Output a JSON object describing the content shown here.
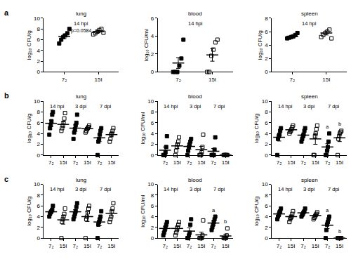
{
  "chart_data": [
    {
      "type": "scatter",
      "panel_label": "a",
      "title": "lung",
      "y_label": "log₁₀ CFU/g",
      "groups": [
        "14 hpi"
      ],
      "categories": [
        "7₂",
        "15I"
      ],
      "marker": [
        "square",
        "square-open"
      ],
      "points": [
        [
          5.3,
          6.0,
          6.5,
          6.8,
          7.2,
          8.0
        ],
        [
          7.0,
          7.2,
          7.5,
          7.8,
          8.0,
          7.3
        ]
      ],
      "mean": [
        6.6,
        7.5
      ],
      "sem": [
        0.4,
        0.2
      ],
      "annotation": "p=0.0584",
      "ylim": [
        0,
        10
      ],
      "yticks": [
        0,
        2,
        4,
        6,
        8,
        10
      ]
    },
    {
      "type": "scatter",
      "title": "blood",
      "y_label": "log₁₀ CFU/ml",
      "groups": [
        "14 hpi"
      ],
      "categories": [
        "7₂",
        "15I"
      ],
      "marker": [
        "square",
        "square-open"
      ],
      "points": [
        [
          0,
          0,
          0,
          0.7,
          1.5,
          3.6
        ],
        [
          0,
          0,
          1.8,
          2.5,
          3.3,
          3.6
        ]
      ],
      "mean": [
        1.0,
        1.9
      ],
      "sem": [
        0.6,
        0.7
      ],
      "ylim": [
        0,
        6
      ],
      "yticks": [
        0,
        2,
        4,
        6
      ]
    },
    {
      "type": "scatter",
      "title": "spleen",
      "y_label": "log₁₀ CFU/g",
      "groups": [
        "14 hpi"
      ],
      "categories": [
        "7₂",
        "15I"
      ],
      "marker": [
        "square",
        "square-open"
      ],
      "points": [
        [
          5.0,
          5.1,
          5.2,
          5.3,
          5.5,
          5.8
        ],
        [
          5.2,
          5.5,
          5.8,
          6.0,
          6.3,
          5.0
        ]
      ],
      "mean": [
        5.3,
        5.8
      ],
      "sem": [
        0.15,
        0.3
      ],
      "ylim": [
        0,
        8
      ],
      "yticks": [
        0,
        2,
        4,
        6,
        8
      ]
    },
    {
      "type": "scatter",
      "panel_label": "b",
      "title": "lung",
      "y_label": "log₁₀ CFU/g",
      "groups": [
        "14 hpi",
        "3 dpi",
        "7 dpi"
      ],
      "categories": [
        "7₂",
        "15I",
        "7₂",
        "15I",
        "7₂",
        "15I"
      ],
      "marker": [
        "square",
        "square-open",
        "square",
        "square-open",
        "square",
        "square-open"
      ],
      "points": [
        [
          3.8,
          5.0,
          5.6,
          6.3,
          7.5,
          8.0
        ],
        [
          4.5,
          5.0,
          5.5,
          6.0,
          6.8,
          7.8
        ],
        [
          3.0,
          4.2,
          4.8,
          5.5,
          6.0,
          7.5
        ],
        [
          4.2,
          4.5,
          4.8,
          5.0,
          5.2,
          5.5
        ],
        [
          0,
          2.5,
          3.0,
          3.8,
          4.5,
          5.0
        ],
        [
          2.5,
          3.0,
          3.8,
          4.0,
          4.5,
          5.0
        ]
      ],
      "mean": [
        5.9,
        5.7,
        5.0,
        4.9,
        3.2,
        3.8
      ],
      "sem": [
        0.6,
        0.5,
        0.6,
        0.2,
        0.7,
        0.4
      ],
      "ylim": [
        0,
        10
      ],
      "yticks": [
        0,
        2,
        4,
        6,
        8,
        10
      ]
    },
    {
      "type": "scatter",
      "title": "blood",
      "y_label": "log₁₀ CFU/ml",
      "groups": [
        "14 hpi",
        "3 dpi",
        "7 dpi"
      ],
      "categories": [
        "7₂",
        "15I",
        "7₂",
        "15I",
        "7₂",
        "15I"
      ],
      "marker": [
        "square",
        "square-open",
        "square",
        "square-open",
        "square",
        "square-open"
      ],
      "points": [
        [
          0,
          0,
          0,
          0.5,
          1.5,
          3.5
        ],
        [
          0,
          0.8,
          1.5,
          2.0,
          2.5,
          3.3
        ],
        [
          0,
          0.8,
          1.5,
          2.0,
          2.5,
          3.0
        ],
        [
          0,
          0,
          0,
          0.5,
          1.5,
          3.8
        ],
        [
          0,
          0,
          0,
          0,
          1.0,
          3.3
        ],
        [
          0,
          0,
          0,
          0,
          0,
          0
        ]
      ],
      "mean": [
        0.9,
        1.7,
        1.6,
        1.0,
        0.7,
        0
      ],
      "sem": [
        0.6,
        0.5,
        0.5,
        0.6,
        0.5,
        0
      ],
      "ylim": [
        0,
        10
      ],
      "yticks": [
        0,
        2,
        4,
        6,
        8,
        10
      ]
    },
    {
      "type": "scatter",
      "title": "spleen",
      "y_label": "log₁₀ CFU/g",
      "groups": [
        "14 hpi",
        "3 dpi",
        "7 dpi"
      ],
      "categories": [
        "7₂",
        "15I",
        "7₂",
        "15I",
        "7₂",
        "15I"
      ],
      "marker": [
        "square",
        "square-open",
        "square",
        "square-open",
        "square",
        "square-open"
      ],
      "points": [
        [
          0,
          3.0,
          3.5,
          3.8,
          4.5,
          5.0
        ],
        [
          4.0,
          4.3,
          4.5,
          4.8,
          5.2,
          5.5
        ],
        [
          2.5,
          3.0,
          3.5,
          3.8,
          4.5,
          5.0
        ],
        [
          0,
          0,
          3.5,
          4.0,
          4.8,
          5.5
        ],
        [
          0,
          0,
          0.8,
          1.5,
          2.5,
          4.0
        ],
        [
          0,
          3.0,
          3.5,
          4.0,
          4.3,
          4.5
        ]
      ],
      "mean": [
        3.3,
        4.7,
        3.7,
        3.0,
        1.5,
        3.2
      ],
      "sem": [
        0.7,
        0.2,
        0.4,
        1.0,
        0.6,
        0.7
      ],
      "letters": [
        null,
        null,
        null,
        null,
        "a",
        "b"
      ],
      "ylim": [
        0,
        10
      ],
      "yticks": [
        0,
        2,
        4,
        6,
        8,
        10
      ]
    },
    {
      "type": "scatter",
      "panel_label": "c",
      "title": "lung",
      "y_label": "log₁₀ CFU/g",
      "groups": [
        "14 hpi",
        "3 dpi",
        "7 dpi"
      ],
      "categories": [
        "7₂",
        "15I",
        "7₂",
        "15I",
        "7₂",
        "15I"
      ],
      "marker": [
        "square",
        "square-open",
        "square",
        "square-open",
        "square",
        "square-open"
      ],
      "points": [
        [
          4.0,
          4.5,
          4.8,
          5.0,
          5.3,
          6.0
        ],
        [
          0,
          3.0,
          3.5,
          4.0,
          4.5,
          5.5
        ],
        [
          3.5,
          4.0,
          4.5,
          5.0,
          5.8,
          6.5
        ],
        [
          0,
          3.5,
          4.0,
          4.8,
          5.5,
          6.0
        ],
        [
          0,
          2.5,
          3.0,
          3.5,
          4.0,
          5.0
        ],
        [
          3.0,
          3.5,
          4.0,
          5.0,
          5.5,
          6.5
        ]
      ],
      "mean": [
        4.9,
        3.4,
        4.9,
        4.0,
        3.0,
        4.6
      ],
      "sem": [
        0.3,
        0.8,
        0.4,
        0.9,
        0.7,
        0.5
      ],
      "ylim": [
        0,
        10
      ],
      "yticks": [
        0,
        2,
        4,
        6,
        8,
        10
      ]
    },
    {
      "type": "scatter",
      "title": "blood",
      "y_label": "log₁₀ CFU/ml",
      "groups": [
        "14 hpi",
        "3 dpi",
        "7 dpi"
      ],
      "categories": [
        "7₂",
        "15I",
        "7₂",
        "15I",
        "7₂",
        "15I"
      ],
      "marker": [
        "square",
        "square-open",
        "square",
        "square-open",
        "square",
        "square-open"
      ],
      "points": [
        [
          0.5,
          1.0,
          1.5,
          2.0,
          2.5,
          3.0
        ],
        [
          0.5,
          1.0,
          1.5,
          2.0,
          2.5,
          3.0
        ],
        [
          0,
          0,
          0.5,
          1.0,
          2.5,
          3.5
        ],
        [
          0,
          0,
          0,
          0,
          0.5,
          3.3
        ],
        [
          1.5,
          2.0,
          2.5,
          3.0,
          3.5,
          4.0
        ],
        [
          0,
          0,
          0,
          0,
          0.5,
          1.8
        ]
      ],
      "mean": [
        1.8,
        1.8,
        1.3,
        0.6,
        2.8,
        0.4
      ],
      "sem": [
        0.4,
        0.4,
        0.6,
        0.5,
        0.4,
        0.3
      ],
      "letters": [
        null,
        null,
        null,
        null,
        "a",
        "b"
      ],
      "ylim": [
        0,
        10
      ],
      "yticks": [
        0,
        2,
        4,
        6,
        8,
        10
      ]
    },
    {
      "type": "scatter",
      "title": "spleen",
      "y_label": "log₁₀ CFU/g",
      "groups": [
        "14 hpi",
        "3 dpi",
        "7 dpi"
      ],
      "categories": [
        "7₂",
        "15I",
        "7₂",
        "15I",
        "7₂",
        "15I"
      ],
      "marker": [
        "square",
        "square-open",
        "square",
        "square-open",
        "square",
        "square-open"
      ],
      "points": [
        [
          3.5,
          4.0,
          4.3,
          4.8,
          5.0,
          5.5
        ],
        [
          3.0,
          3.5,
          3.8,
          4.0,
          4.5,
          5.0
        ],
        [
          4.0,
          4.3,
          4.5,
          4.8,
          5.0,
          5.5
        ],
        [
          3.5,
          3.8,
          4.0,
          4.3,
          4.5,
          4.8
        ],
        [
          0,
          1.5,
          2.5,
          3.0,
          3.5,
          4.0
        ],
        [
          0,
          0,
          0,
          0,
          0,
          0
        ]
      ],
      "mean": [
        4.5,
        4.0,
        4.7,
        4.2,
        2.4,
        0
      ],
      "sem": [
        0.3,
        0.3,
        0.2,
        0.2,
        0.6,
        0
      ],
      "letters": [
        null,
        null,
        null,
        null,
        "a",
        "b"
      ],
      "ylim": [
        0,
        10
      ],
      "yticks": [
        0,
        2,
        4,
        6,
        8,
        10
      ]
    }
  ]
}
